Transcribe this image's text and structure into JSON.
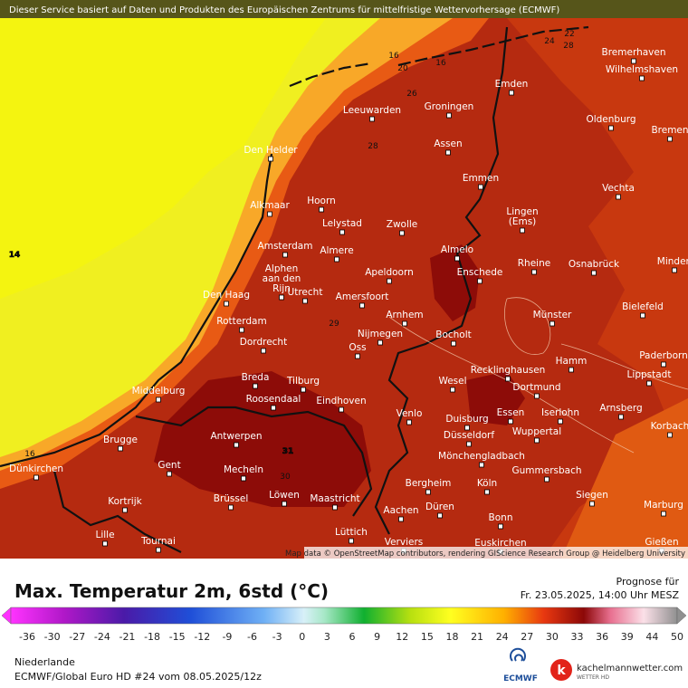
{
  "header": {
    "notice": "Dieser Service basiert auf Daten und Produkten des Europäischen Zentrums für mittelfristige Wettervorhersage (ECMWF)"
  },
  "map": {
    "cities": [
      {
        "label": [
          "Bremerhaven"
        ]
      },
      {
        "label": [
          "Wilhelmshaven"
        ]
      },
      {
        "label": [
          "Emden"
        ]
      },
      {
        "label": [
          "Leeuwarden"
        ]
      },
      {
        "label": [
          "Groningen"
        ]
      },
      {
        "label": [
          "Oldenburg"
        ]
      },
      {
        "label": [
          "Bremen"
        ]
      },
      {
        "label": [
          "Den Helder"
        ]
      },
      {
        "label": [
          "Assen"
        ]
      },
      {
        "label": [
          "Emmen"
        ]
      },
      {
        "label": [
          "Vechta"
        ]
      },
      {
        "label": [
          "Alkmaar"
        ]
      },
      {
        "label": [
          "Hoorn"
        ]
      },
      {
        "label": [
          "Lingen",
          "(Ems)"
        ]
      },
      {
        "label": [
          "Lelystad"
        ]
      },
      {
        "label": [
          "Zwolle"
        ]
      },
      {
        "label": [
          "Almelo"
        ]
      },
      {
        "label": [
          "Amsterdam"
        ]
      },
      {
        "label": [
          "Almere"
        ]
      },
      {
        "label": [
          "Rheine"
        ]
      },
      {
        "label": [
          "Osnabrück"
        ]
      },
      {
        "label": [
          "Minden"
        ]
      },
      {
        "label": [
          "Apeldoorn"
        ]
      },
      {
        "label": [
          "Enschede"
        ]
      },
      {
        "label": [
          "Alphen",
          "aan den",
          "Rijn"
        ]
      },
      {
        "label": [
          "Den Haag"
        ]
      },
      {
        "label": [
          "Utrecht"
        ]
      },
      {
        "label": [
          "Amersfoort"
        ]
      },
      {
        "label": [
          "Bielefeld"
        ]
      },
      {
        "label": [
          "Münster"
        ]
      },
      {
        "label": [
          "Arnhem"
        ]
      },
      {
        "label": [
          "Rotterdam"
        ]
      },
      {
        "label": [
          "Nijmegen"
        ]
      },
      {
        "label": [
          "Bocholt"
        ]
      },
      {
        "label": [
          "Dordrecht"
        ]
      },
      {
        "label": [
          "Oss"
        ]
      },
      {
        "label": [
          "Paderborn"
        ]
      },
      {
        "label": [
          "Hamm"
        ]
      },
      {
        "label": [
          "Recklinghausen"
        ]
      },
      {
        "label": [
          "Lippstadt"
        ]
      },
      {
        "label": [
          "Breda"
        ]
      },
      {
        "label": [
          "Tilburg"
        ]
      },
      {
        "label": [
          "Wesel"
        ]
      },
      {
        "label": [
          "Middelburg"
        ]
      },
      {
        "label": [
          "Dortmund"
        ]
      },
      {
        "label": [
          "Roosendaal"
        ]
      },
      {
        "label": [
          "Eindhoven"
        ]
      },
      {
        "label": [
          "Arnsberg"
        ]
      },
      {
        "label": [
          "Venlo"
        ]
      },
      {
        "label": [
          "Essen"
        ]
      },
      {
        "label": [
          "Iserlohn"
        ]
      },
      {
        "label": [
          "Duisburg"
        ]
      },
      {
        "label": [
          "Korbach"
        ]
      },
      {
        "label": [
          "Wuppertal"
        ]
      },
      {
        "label": [
          "Antwerpen"
        ]
      },
      {
        "label": [
          "Düsseldorf"
        ]
      },
      {
        "label": [
          "Brugge"
        ]
      },
      {
        "label": [
          "Mönchengladbach"
        ]
      },
      {
        "label": [
          "Gent"
        ]
      },
      {
        "label": [
          "Mecheln"
        ]
      },
      {
        "label": [
          "Gummersbach"
        ]
      },
      {
        "label": [
          "Dünkirchen"
        ]
      },
      {
        "label": [
          "Bergheim"
        ]
      },
      {
        "label": [
          "Köln"
        ]
      },
      {
        "label": [
          "Löwen"
        ]
      },
      {
        "label": [
          "Maastricht"
        ]
      },
      {
        "label": [
          "Siegen"
        ]
      },
      {
        "label": [
          "Brüssel"
        ]
      },
      {
        "label": [
          "Kortrijk"
        ]
      },
      {
        "label": [
          "Marburg"
        ]
      },
      {
        "label": [
          "Düren"
        ]
      },
      {
        "label": [
          "Aachen"
        ]
      },
      {
        "label": [
          "Bonn"
        ]
      },
      {
        "label": [
          "Lüttich"
        ]
      },
      {
        "label": [
          "Lille"
        ]
      },
      {
        "label": [
          "Tournai"
        ]
      },
      {
        "label": [
          "Gießen"
        ]
      },
      {
        "label": [
          "Verviers"
        ]
      },
      {
        "label": [
          "Euskirchen"
        ]
      }
    ],
    "contour_labels": [
      16,
      20,
      16,
      24,
      22,
      28,
      26,
      28,
      14,
      29,
      31,
      30,
      16
    ],
    "attribution": "Map data © OpenStreetMap contributors, rendering GIScience Research Group @ Heidelberg University"
  },
  "legend": {
    "title": "Max. Temperatur 2m, 6std (°C)",
    "forecast_label": "Prognose für",
    "forecast_time": "Fr. 23.05.2025, 14:00 Uhr MESZ",
    "colorbar_ticks": [
      -36,
      -30,
      -27,
      -24,
      -21,
      -18,
      -15,
      -12,
      -9,
      -6,
      -3,
      0,
      3,
      6,
      9,
      12,
      15,
      18,
      21,
      24,
      27,
      30,
      33,
      36,
      39,
      44,
      50
    ]
  },
  "footer": {
    "region": "Niederlande",
    "model": "ECMWF/Global Euro HD #24 vom  08.05.2025/12z",
    "ecmwf_logo": "ECMWF",
    "brand": "kachelmannwetter.com",
    "brand_sub": "WETTER HD"
  }
}
